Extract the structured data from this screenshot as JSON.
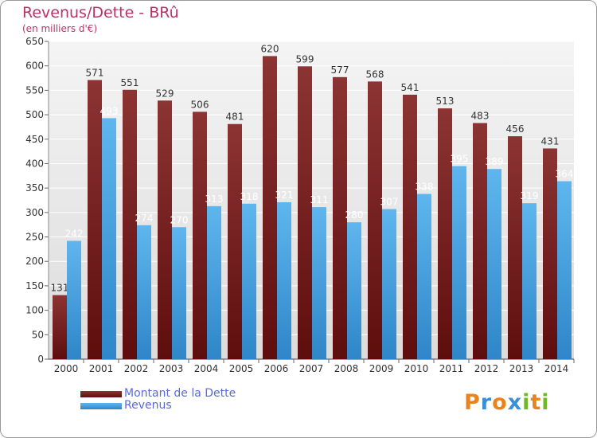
{
  "chart_data": {
    "type": "bar",
    "title": "Revenus/Dette - BRû",
    "subtitle": "(en milliers d'€)",
    "categories": [
      "2000",
      "2001",
      "2002",
      "2003",
      "2004",
      "2005",
      "2006",
      "2007",
      "2008",
      "2009",
      "2010",
      "2011",
      "2012",
      "2013",
      "2014"
    ],
    "series": [
      {
        "name": "Montant de la Dette",
        "color": "#7a1c1c",
        "values": [
          131,
          571,
          551,
          529,
          506,
          481,
          620,
          599,
          577,
          568,
          541,
          513,
          483,
          456,
          431
        ]
      },
      {
        "name": "Revenus",
        "color": "#4aa6e6",
        "values": [
          242,
          493,
          274,
          270,
          313,
          318,
          321,
          311,
          280,
          307,
          338,
          395,
          389,
          319,
          364
        ]
      }
    ],
    "ylim": [
      0,
      650
    ],
    "yticks": [
      0,
      50,
      100,
      150,
      200,
      250,
      300,
      350,
      400,
      450,
      500,
      550,
      600,
      650
    ],
    "grid": true,
    "legend_position": "bottom-left"
  },
  "logo": {
    "text": "Proxiti",
    "colors": [
      "#e8831e",
      "#3a8fd6",
      "#e8831e",
      "#3a8fd6",
      "#6fb82a",
      "#e8831e",
      "#6fb82a"
    ]
  }
}
